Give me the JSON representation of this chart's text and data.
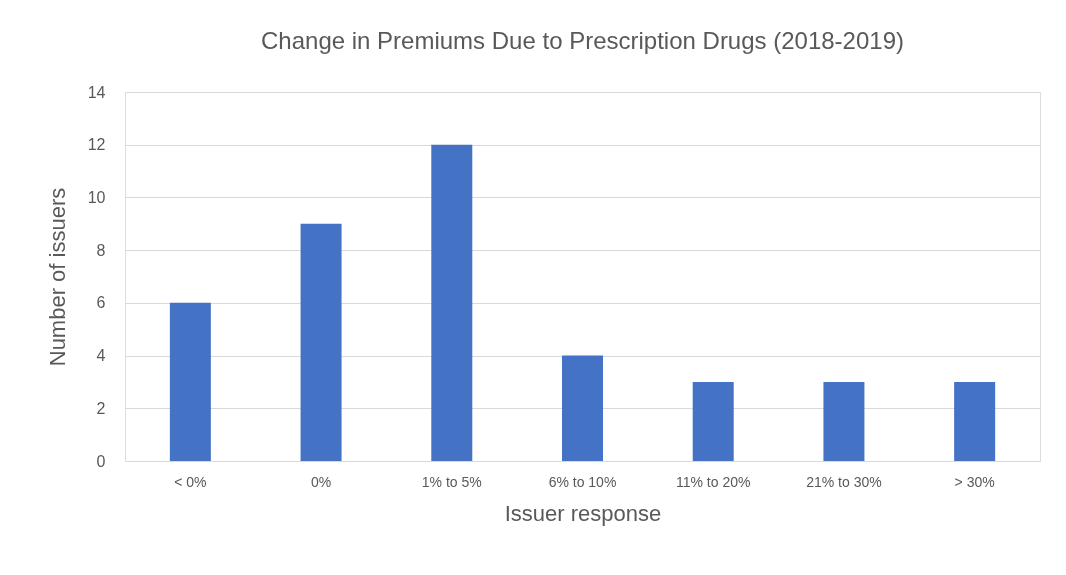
{
  "chart_data": {
    "type": "bar",
    "title": "Change in Premiums Due to Prescription Drugs (2018-2019)",
    "xlabel": "Issuer response",
    "ylabel": "Number of issuers",
    "categories": [
      "< 0%",
      "0%",
      "1% to 5%",
      "6% to 10%",
      "11% to 20%",
      "21% to 30%",
      "> 30%"
    ],
    "values": [
      6,
      9,
      12,
      4,
      3,
      3,
      3
    ],
    "color": "#4472c4",
    "ylim": [
      0,
      14
    ],
    "yticks": [
      0,
      2,
      4,
      6,
      8,
      10,
      12,
      14
    ],
    "grid": "y"
  }
}
